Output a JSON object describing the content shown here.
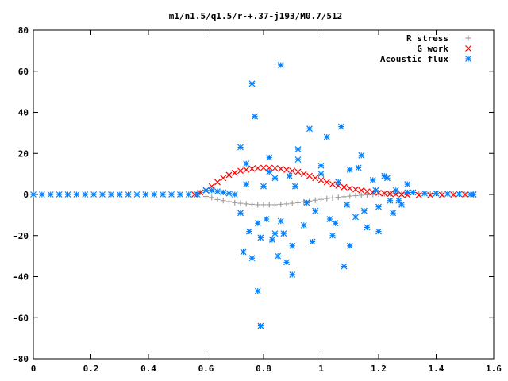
{
  "chart_data": {
    "type": "scatter",
    "title": "m1/n1.5/q1.5/r-+.37-j193/M0.7/512",
    "xlabel": "",
    "ylabel": "",
    "xlim": [
      0,
      1.6
    ],
    "ylim": [
      -80,
      80
    ],
    "x_ticks": [
      "0",
      "0.2",
      "0.4",
      "0.6",
      "0.8",
      "1",
      "1.2",
      "1.4",
      "1.6"
    ],
    "y_ticks": [
      "80",
      "60",
      "40",
      "20",
      "0",
      "-20",
      "-40",
      "-60",
      "-80"
    ],
    "grid": false,
    "legend_position": "top-right",
    "series": [
      {
        "name": "R stress",
        "marker": "plus",
        "color": "#a0a0a0",
        "x": [
          0.58,
          0.6,
          0.62,
          0.64,
          0.66,
          0.68,
          0.7,
          0.72,
          0.74,
          0.76,
          0.78,
          0.8,
          0.82,
          0.84,
          0.86,
          0.88,
          0.9,
          0.92,
          0.94,
          0.96,
          0.98,
          1.0,
          1.02,
          1.04,
          1.06,
          1.08,
          1.1,
          1.12,
          1.14,
          1.16,
          1.18,
          1.2,
          1.22,
          1.24,
          1.26,
          1.28,
          1.3,
          1.34,
          1.38,
          1.42,
          1.46,
          1.5,
          1.53
        ],
        "y": [
          1,
          -1,
          -1.5,
          -2.5,
          -3,
          -3.5,
          -4,
          -4.3,
          -4.6,
          -4.8,
          -5,
          -5,
          -5,
          -5,
          -4.8,
          -4.6,
          -4.3,
          -4,
          -3.6,
          -3.2,
          -2.8,
          -2.4,
          -2,
          -1.7,
          -1.4,
          -1.1,
          -0.8,
          -0.6,
          -0.4,
          -0.2,
          0,
          0.2,
          0.3,
          0.4,
          0.5,
          0.5,
          0.5,
          0.5,
          0.4,
          0.3,
          0.2,
          0.1,
          0
        ]
      },
      {
        "name": "G work",
        "marker": "cross",
        "color": "#ff0000",
        "x": [
          0.56,
          0.58,
          0.6,
          0.62,
          0.64,
          0.66,
          0.68,
          0.7,
          0.72,
          0.74,
          0.76,
          0.78,
          0.8,
          0.82,
          0.84,
          0.86,
          0.88,
          0.9,
          0.92,
          0.94,
          0.96,
          0.98,
          1.0,
          1.02,
          1.04,
          1.06,
          1.08,
          1.1,
          1.12,
          1.14,
          1.16,
          1.18,
          1.2,
          1.22,
          1.24,
          1.26,
          1.28,
          1.3,
          1.34,
          1.38,
          1.42,
          1.46,
          1.5,
          1.53
        ],
        "y": [
          0,
          1,
          2,
          4,
          6,
          8,
          9.5,
          10.5,
          11.5,
          12,
          12.5,
          12.8,
          13,
          13,
          12.8,
          12.5,
          12,
          11.5,
          11,
          10,
          9,
          8,
          7,
          6,
          5,
          4.3,
          3.6,
          3,
          2.5,
          2,
          1.5,
          1.1,
          0.8,
          0.5,
          0.3,
          0.1,
          0,
          -0.2,
          -0.3,
          -0.3,
          -0.2,
          -0.1,
          0,
          0
        ]
      },
      {
        "name": "Acoustic flux",
        "marker": "asterisk",
        "color": "#0080ff",
        "x": [
          0.0,
          0.03,
          0.06,
          0.09,
          0.12,
          0.15,
          0.18,
          0.21,
          0.24,
          0.27,
          0.3,
          0.33,
          0.36,
          0.39,
          0.42,
          0.45,
          0.48,
          0.51,
          0.54,
          0.57,
          0.6,
          0.62,
          0.64,
          0.66,
          0.68,
          0.7,
          0.72,
          0.73,
          0.74,
          0.75,
          0.76,
          0.76,
          0.77,
          0.78,
          0.79,
          0.8,
          0.81,
          0.82,
          0.83,
          0.84,
          0.85,
          0.86,
          0.87,
          0.88,
          0.89,
          0.9,
          0.91,
          0.92,
          0.94,
          0.96,
          0.98,
          1.0,
          1.02,
          1.04,
          1.06,
          1.07,
          1.08,
          1.1,
          1.12,
          1.14,
          1.16,
          1.18,
          1.2,
          1.22,
          1.24,
          1.26,
          1.28,
          1.3,
          1.32,
          1.36,
          1.4,
          1.44,
          1.48,
          1.52,
          1.53,
          0.72,
          0.74,
          0.79,
          0.82,
          0.86,
          0.9,
          0.95,
          1.0,
          1.05,
          1.1,
          1.15,
          1.2,
          1.25,
          1.3,
          0.78,
          0.84,
          0.92,
          0.97,
          1.03,
          1.09,
          1.13,
          1.19,
          1.23,
          1.27
        ],
        "y": [
          0,
          0,
          0,
          0,
          0,
          0,
          0,
          0,
          0,
          0,
          0,
          0,
          0,
          0,
          0,
          0,
          0,
          0,
          0,
          0,
          2,
          2,
          1.5,
          1,
          0.5,
          0,
          23,
          -28,
          5,
          -18,
          54,
          -31,
          38,
          -47,
          -21,
          4,
          -12,
          18,
          -22,
          8,
          -30,
          63,
          -19,
          -33,
          9,
          -25,
          4,
          22,
          -15,
          32,
          -8,
          14,
          28,
          -20,
          6,
          33,
          -35,
          12,
          -11,
          19,
          -16,
          7,
          -6,
          9,
          -3,
          2,
          -5,
          1,
          1,
          0.5,
          0.5,
          0.3,
          0.2,
          0,
          0,
          -9,
          15,
          -64,
          11,
          -13,
          -39,
          -4,
          10,
          -14,
          -25,
          -8,
          -18,
          -9,
          5,
          -14,
          -19,
          17,
          -23,
          -12,
          -5,
          13,
          2,
          8,
          -3
        ]
      }
    ]
  }
}
